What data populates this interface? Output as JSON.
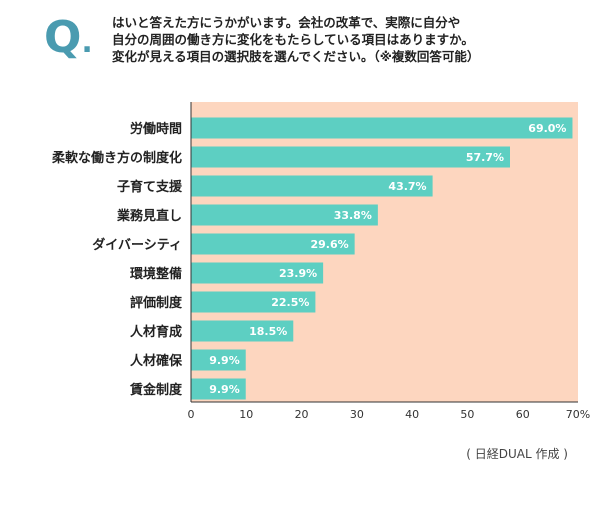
{
  "question": {
    "mark": "Q",
    "mark_dot": ".",
    "lines": [
      "はいと答えた方にうかがいます。会社の改革で、実際に自分や",
      "自分の周囲の働き方に変化をもたらしている項目はありますか。",
      "変化が見える項目の選択肢を選んでください。（※複数回答可能）"
    ]
  },
  "source": "( 日経DUAL 作成 )",
  "colors": {
    "bar": "#5dcfc2",
    "plot_bg": "#fdd6bf",
    "accent": "#4a9bb0"
  },
  "chart_data": {
    "type": "bar",
    "orientation": "horizontal",
    "categories": [
      "労働時間",
      "柔軟な働き方の制度化",
      "子育て支援",
      "業務見直し",
      "ダイバーシティ",
      "環境整備",
      "評価制度",
      "人材育成",
      "人材確保",
      "賃金制度"
    ],
    "values": [
      69.0,
      57.7,
      43.7,
      33.8,
      29.6,
      23.9,
      22.5,
      18.5,
      9.9,
      9.9
    ],
    "value_labels": [
      "69.0%",
      "57.7%",
      "43.7%",
      "33.8%",
      "29.6%",
      "23.9%",
      "22.5%",
      "18.5%",
      "9.9%",
      "9.9%"
    ],
    "xlim": [
      0,
      70
    ],
    "ticks": [
      0,
      10,
      20,
      30,
      40,
      50,
      60,
      70
    ],
    "tick_labels": [
      "0",
      "10",
      "20",
      "30",
      "40",
      "50",
      "60",
      "70%"
    ],
    "grid": false
  }
}
